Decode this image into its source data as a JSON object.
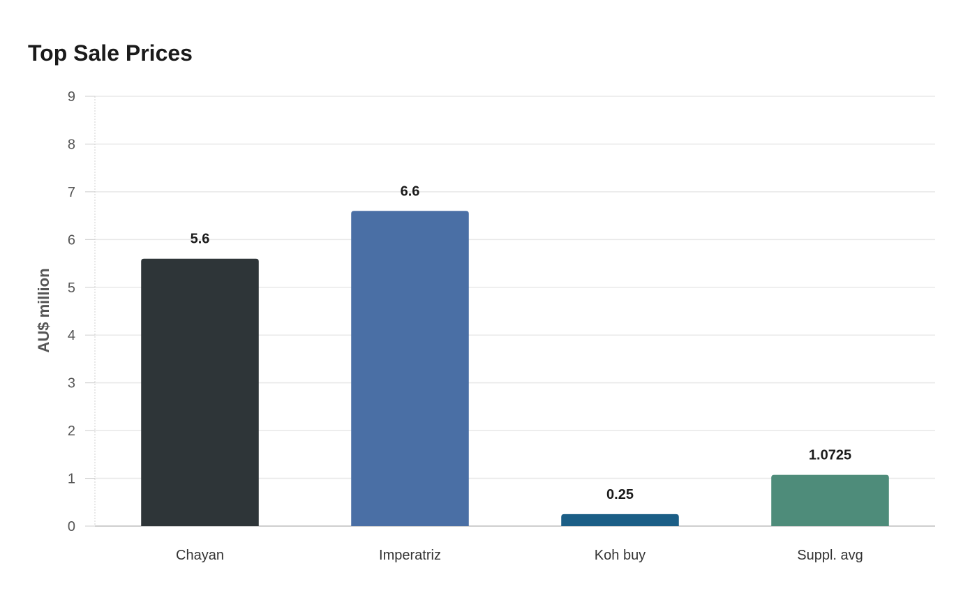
{
  "chart_data": {
    "type": "bar",
    "title": "Top Sale Prices",
    "xlabel": "",
    "ylabel": "AU$ million",
    "categories": [
      "Chayan",
      "Imperatriz",
      "Koh buy",
      "Suppl. avg"
    ],
    "values": [
      5.6,
      6.6,
      0.25,
      1.0725
    ],
    "value_labels": [
      "5.6",
      "6.6",
      "0.25",
      "1.0725"
    ],
    "colors": [
      "#2e3538",
      "#4a6fa5",
      "#1b5e86",
      "#4e8c7a"
    ],
    "ylim": [
      0,
      9
    ],
    "yticks": [
      0,
      1,
      2,
      3,
      4,
      5,
      6,
      7,
      8,
      9
    ],
    "grid": true,
    "legend": "none"
  }
}
